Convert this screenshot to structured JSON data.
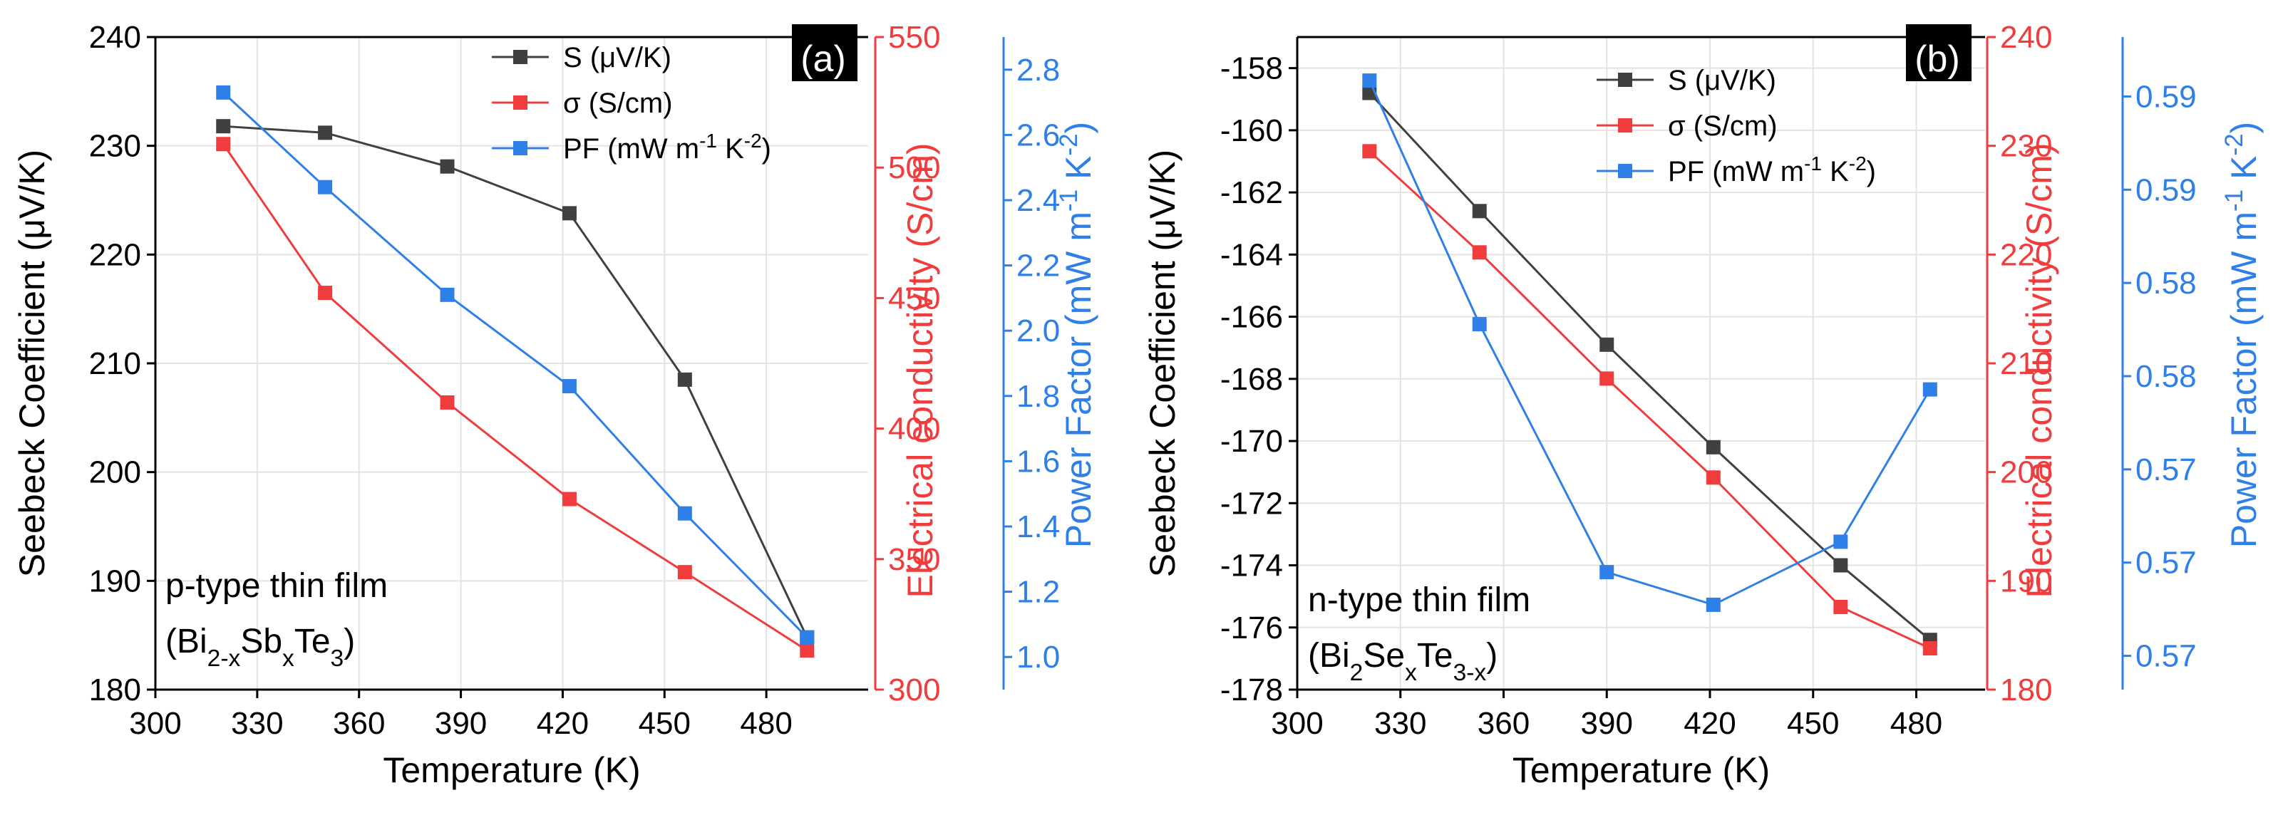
{
  "colors": {
    "S": "#404040",
    "sigma": "#f03c3c",
    "PF": "#2f7fe8",
    "grid": "#e3e3e3",
    "axis": "#000000"
  },
  "chart_data": [
    {
      "type": "line",
      "panel_label": "(a)",
      "annotation_lines": [
        "p-type thin film",
        "(Bi2-xSbxTe3)"
      ],
      "xlabel": "Temperature (K)",
      "xlim": [
        300,
        510
      ],
      "xticks": [
        300,
        330,
        360,
        390,
        420,
        450,
        480
      ],
      "grid": true,
      "legend_position": "top-right",
      "axes": {
        "left": {
          "label": "Seebeck Coefficient (μV/K)",
          "lim": [
            180,
            240
          ],
          "ticks": [
            180,
            190,
            200,
            210,
            220,
            230,
            240
          ]
        },
        "right1": {
          "label": "Electrical conductivity (S/cm)",
          "lim": [
            300,
            550
          ],
          "ticks": [
            300,
            350,
            400,
            450,
            500,
            550
          ]
        },
        "right2": {
          "label": "Power Factor (mW m-1 K-2)",
          "lim": [
            0.9,
            2.9
          ],
          "ticks": [
            "1.0",
            "1.2",
            "1.4",
            "1.6",
            "1.8",
            "2.0",
            "2.2",
            "2.4",
            "2.6",
            "2.8"
          ]
        }
      },
      "series": [
        {
          "name": "S (μV/K)",
          "axis": "left",
          "color_key": "S",
          "x": [
            320,
            350,
            386,
            422,
            456,
            492
          ],
          "values": [
            231.8,
            231.2,
            228.1,
            223.8,
            208.5,
            184.8
          ]
        },
        {
          "name": "σ (S/cm)",
          "axis": "right1",
          "color_key": "sigma",
          "x": [
            320,
            350,
            386,
            422,
            456,
            492
          ],
          "values": [
            509,
            452,
            410,
            373,
            345,
            315
          ]
        },
        {
          "name": "PF (mW m-1 K-2)",
          "axis": "right2",
          "color_key": "PF",
          "x": [
            320,
            350,
            386,
            422,
            456,
            492
          ],
          "values": [
            2.73,
            2.44,
            2.11,
            1.83,
            1.44,
            1.06
          ]
        }
      ]
    },
    {
      "type": "line",
      "panel_label": "(b)",
      "annotation_lines": [
        "n-type thin film",
        "(Bi2SexTe3-x)"
      ],
      "xlabel": "Temperature (K)",
      "xlim": [
        300,
        500
      ],
      "xticks": [
        300,
        330,
        360,
        390,
        420,
        450,
        480
      ],
      "grid": true,
      "legend_position": "top-right",
      "axes": {
        "left": {
          "label": "Seebeck Coefficient (μV/K)",
          "lim": [
            -178,
            -157
          ],
          "ticks": [
            -178,
            -176,
            -174,
            -172,
            -170,
            -168,
            -166,
            -164,
            -162,
            -160,
            -158
          ]
        },
        "right1": {
          "label": "Electrical conductivity (S/cm)",
          "lim": [
            180,
            240
          ],
          "ticks": [
            180,
            190,
            200,
            210,
            220,
            230,
            240
          ]
        },
        "right2": {
          "label": "Power Factor (mW m-1 K-2)",
          "lim": [
            0.5625,
            0.5925
          ],
          "ticks": [
            "0.57",
            "0.57",
            "0.57",
            "0.58",
            "0.58",
            "0.59",
            "0.59"
          ]
        }
      },
      "series": [
        {
          "name": "S (μV/K)",
          "axis": "left",
          "color_key": "S",
          "x": [
            321,
            353,
            390,
            421,
            458,
            484
          ],
          "values": [
            -158.8,
            -162.6,
            -166.9,
            -170.2,
            -174.0,
            -176.4
          ]
        },
        {
          "name": "σ (S/cm)",
          "axis": "right1",
          "color_key": "sigma",
          "x": [
            321,
            353,
            390,
            421,
            458,
            484
          ],
          "values": [
            229.5,
            220.2,
            208.6,
            199.5,
            187.6,
            183.8
          ]
        },
        {
          "name": "PF (mW m-1 K-2)",
          "axis": "right2",
          "color_key": "PF",
          "x": [
            321,
            353,
            390,
            421,
            458,
            484
          ],
          "values": [
            0.5905,
            0.5793,
            0.5679,
            0.5664,
            0.5693,
            0.5763
          ]
        }
      ]
    }
  ]
}
